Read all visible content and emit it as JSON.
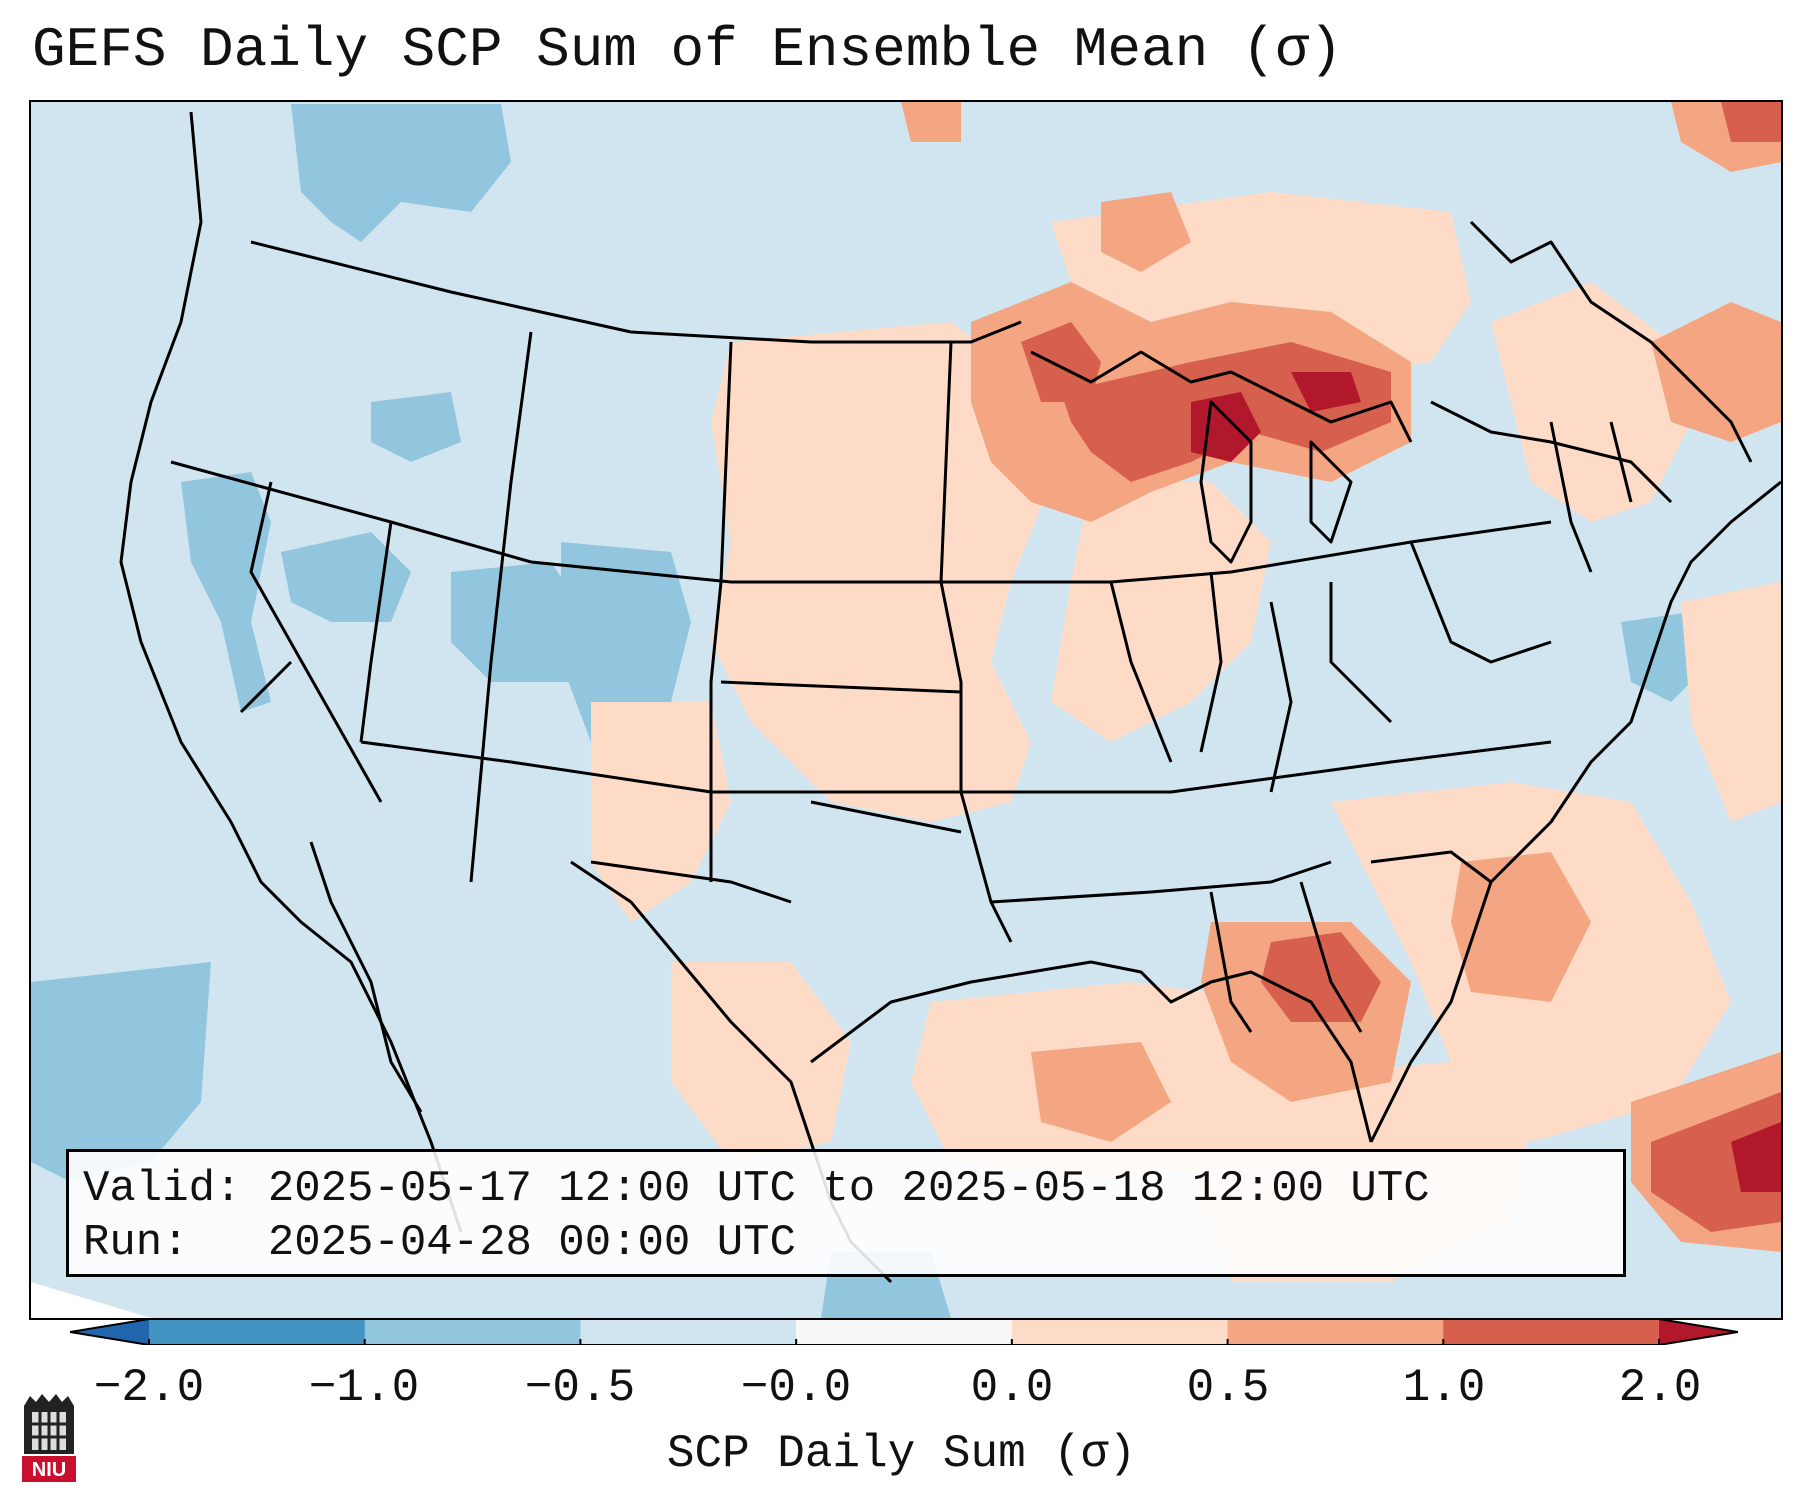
{
  "title": "GEFS Daily SCP Sum of Ensemble Mean (σ)",
  "info": {
    "valid_label": "Valid:",
    "valid_value": "2025-05-17 12:00 UTC to 2025-05-18 12:00 UTC",
    "run_label": "Run:",
    "run_value": "2025-04-28 00:00 UTC"
  },
  "colorbar": {
    "label": "SCP Daily Sum (σ)",
    "ticks": [
      "−2.0",
      "−1.0",
      "−0.5",
      "−0.0",
      "0.0",
      "0.5",
      "1.0",
      "2.0"
    ],
    "bins": [
      {
        "range": "< −2.0",
        "color": "#2166ac"
      },
      {
        "range": "−2.0 to −1.0",
        "color": "#4393c3"
      },
      {
        "range": "−1.0 to −0.5",
        "color": "#92c5de"
      },
      {
        "range": "−0.5 to −0.0",
        "color": "#d1e5f0"
      },
      {
        "range": "−0.0 to 0.0",
        "color": "#f7f7f7"
      },
      {
        "range": "0.0 to 0.5",
        "color": "#fddbc7"
      },
      {
        "range": "0.5 to 1.0",
        "color": "#f4a582"
      },
      {
        "range": "1.0 to 2.0",
        "color": "#d6604d"
      },
      {
        "range": "> 2.0",
        "color": "#b2182b"
      }
    ]
  },
  "logo": {
    "text": "NIU",
    "color": "#c8102e"
  }
}
